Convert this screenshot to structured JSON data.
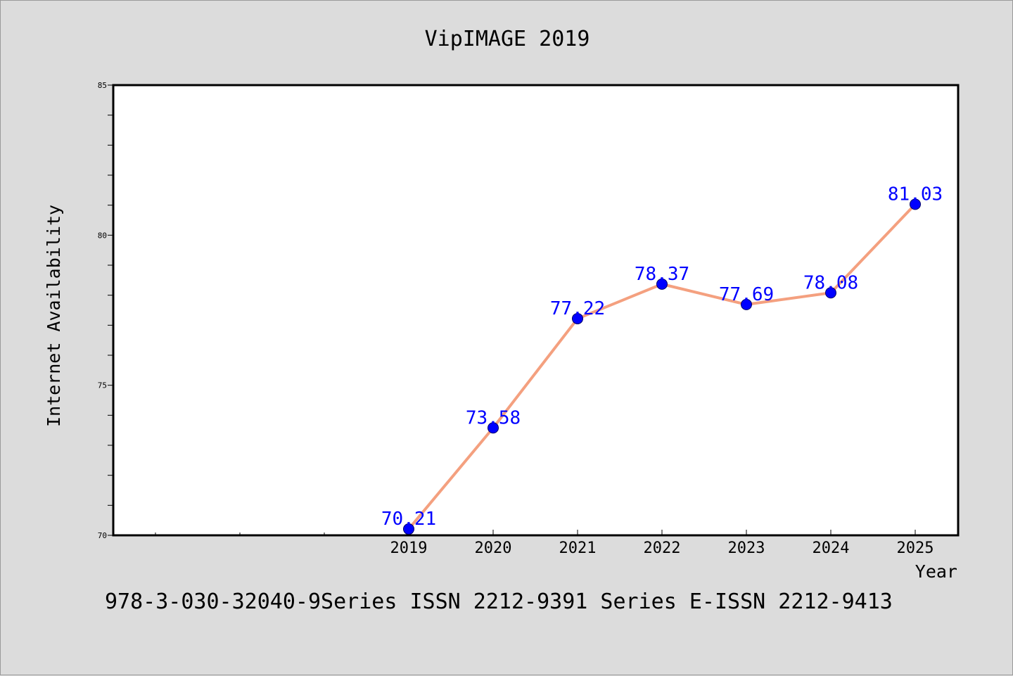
{
  "title": "VipIMAGE 2019",
  "footer": "978-3-030-32040-9Series ISSN 2212-9391 Series E-ISSN 2212-9413",
  "colors": {
    "background": "#dcdcdc",
    "plot_background": "#ffffff",
    "line": "#f4a07f",
    "marker": "#0000ff",
    "data_label": "#0000ff"
  },
  "chart_data": {
    "type": "line",
    "xlabel": "Year",
    "ylabel": "Internet Availability",
    "x": [
      "2019",
      "2020",
      "2021",
      "2022",
      "2023",
      "2024",
      "2025"
    ],
    "series": [
      {
        "values": [
          70.21,
          73.58,
          77.22,
          78.37,
          77.69,
          78.08,
          81.03
        ],
        "labels": [
          "70.21",
          "73.58",
          "77.22",
          "78.37",
          "77.69",
          "78.08",
          "81.03"
        ]
      }
    ],
    "ylim": [
      70,
      85
    ],
    "yticks": [
      "70",
      "75",
      "80",
      "85"
    ],
    "grid": false,
    "legend": "none"
  }
}
